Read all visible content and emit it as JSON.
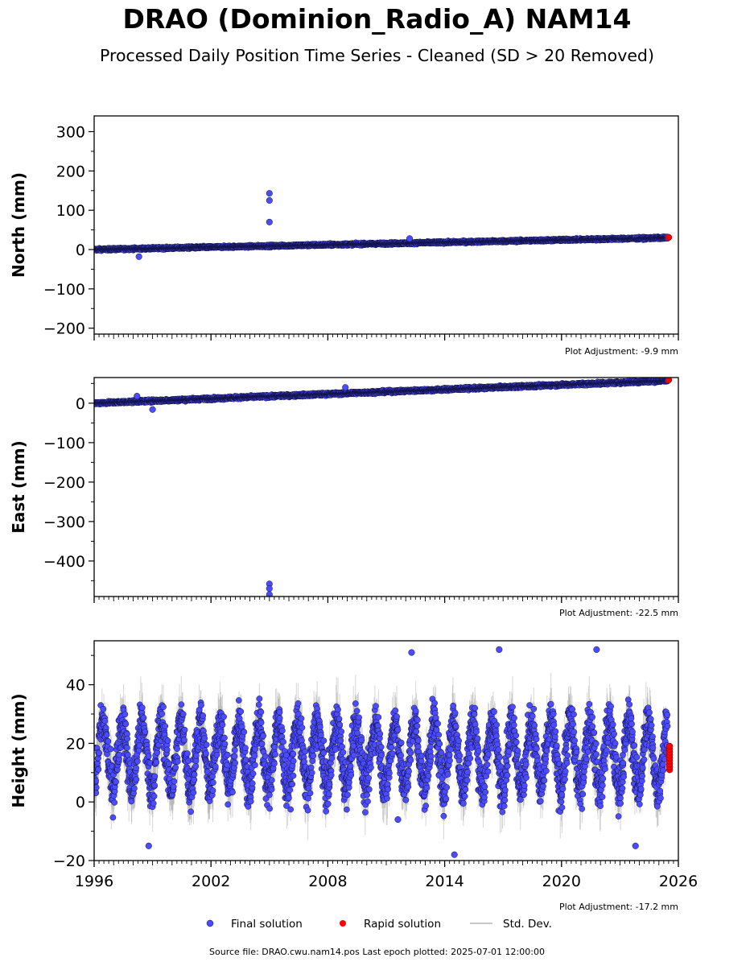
{
  "header": {
    "title": "DRAO (Dominion_Radio_A) NAM14",
    "subtitle": "Processed Daily Position Time Series - Cleaned (SD > 20 Removed)"
  },
  "footer": {
    "source": "Source file: DRAO.cwu.nam14.pos  Last epoch plotted: 2025-07-01 12:00:00"
  },
  "colors": {
    "final": "#4c4cff",
    "rapid": "#ff0000",
    "std": "#c8c8c8",
    "edge": "#101040"
  },
  "chart_data": [
    {
      "type": "scatter",
      "ylabel": "North (mm)",
      "xlim": [
        1996,
        2026
      ],
      "ylim": [
        -215,
        340
      ],
      "yticks": [
        300,
        200,
        100,
        0,
        -100,
        -200
      ],
      "ytick_labels": [
        "300",
        "200",
        "100",
        "0",
        "−100",
        "−200"
      ],
      "adjustment": "Plot Adjustment: -9.9 mm",
      "final_trend": {
        "start": [
          1996.0,
          0
        ],
        "end": [
          2025.4,
          30
        ]
      },
      "outliers": [
        [
          2005.0,
          143
        ],
        [
          2005.0,
          125
        ],
        [
          2005.0,
          70
        ],
        [
          1998.3,
          -18
        ],
        [
          2012.2,
          28
        ]
      ],
      "rapid": [
        [
          2025.5,
          31
        ]
      ]
    },
    {
      "type": "scatter",
      "ylabel": "East (mm)",
      "xlim": [
        1996,
        2026
      ],
      "ylim": [
        -490,
        65
      ],
      "yticks": [
        0,
        -100,
        -200,
        -300,
        -400
      ],
      "ytick_labels": [
        "0",
        "−100",
        "−200",
        "−300",
        "−400"
      ],
      "adjustment": "Plot Adjustment: -22.5 mm",
      "final_trend": {
        "start": [
          1996.0,
          0
        ],
        "end": [
          2025.4,
          57
        ]
      },
      "outliers": [
        [
          2005.0,
          -458
        ],
        [
          2005.0,
          -470
        ],
        [
          2005.0,
          -485
        ],
        [
          1999.0,
          -16
        ],
        [
          2008.9,
          40
        ],
        [
          1998.2,
          18
        ]
      ],
      "rapid": [
        [
          2025.5,
          59
        ]
      ]
    },
    {
      "type": "scatter",
      "ylabel": "Height (mm)",
      "xlim": [
        1996,
        2026
      ],
      "ylim": [
        -20,
        55
      ],
      "yticks": [
        40,
        20,
        0,
        -20
      ],
      "ytick_labels": [
        "40",
        "20",
        "0",
        "−20"
      ],
      "xticks": [
        1996,
        2002,
        2008,
        2014,
        2020,
        2026
      ],
      "xtick_labels": [
        "1996",
        "2002",
        "2008",
        "2014",
        "2020",
        "2026"
      ],
      "adjustment": "Plot Adjustment: -17.2 mm",
      "final_seasonal": {
        "mean": 16,
        "amplitude": 11,
        "period_years": 1.0
      },
      "outliers": [
        [
          2012.3,
          51
        ],
        [
          2016.8,
          52
        ],
        [
          2021.8,
          52
        ],
        [
          2014.5,
          -18
        ],
        [
          1998.8,
          -15
        ],
        [
          2023.8,
          -15
        ],
        [
          2011.6,
          -6
        ]
      ],
      "rapid": [
        [
          2025.55,
          11
        ],
        [
          2025.55,
          12
        ],
        [
          2025.55,
          13
        ],
        [
          2025.55,
          14
        ],
        [
          2025.55,
          15
        ],
        [
          2025.55,
          16
        ],
        [
          2025.55,
          17
        ],
        [
          2025.55,
          18
        ],
        [
          2025.55,
          19
        ]
      ]
    }
  ],
  "legend": {
    "final_label": "Final solution",
    "rapid_label": "Rapid solution",
    "std_label": "Std. Dev."
  }
}
